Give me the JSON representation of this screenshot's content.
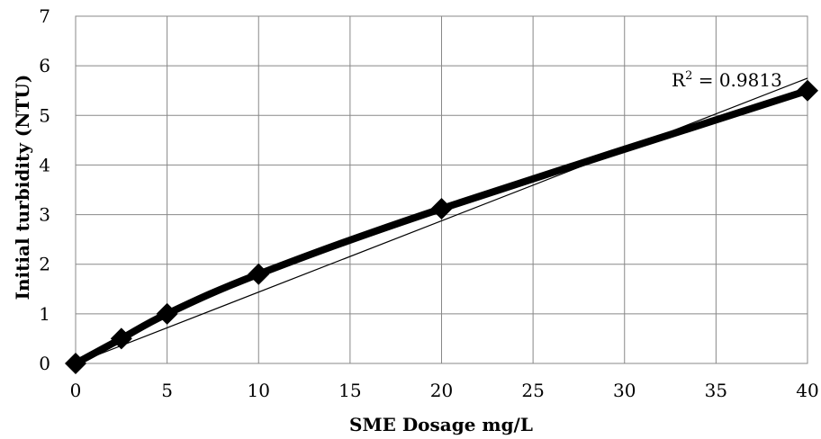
{
  "chart_data": {
    "type": "scatter",
    "xlabel": "SME Dosage mg/L",
    "ylabel": "Initial turbidity  (NTU)",
    "xlim": [
      0,
      40
    ],
    "ylim": [
      0,
      7
    ],
    "x_ticks": [
      0,
      5,
      10,
      15,
      20,
      25,
      30,
      35,
      40
    ],
    "y_ticks": [
      0,
      1,
      2,
      3,
      4,
      5,
      6,
      7
    ],
    "grid": true,
    "series": [
      {
        "points": [
          {
            "x": 0,
            "y": 0
          },
          {
            "x": 2.5,
            "y": 0.5
          },
          {
            "x": 5,
            "y": 1.0
          },
          {
            "x": 10,
            "y": 1.8
          },
          {
            "x": 20,
            "y": 3.12
          },
          {
            "x": 40,
            "y": 5.5
          }
        ],
        "marker": "diamond",
        "line": "smooth",
        "color": "#000000"
      }
    ],
    "trendline": {
      "type": "linear",
      "x": [
        0,
        40
      ],
      "y": [
        0,
        5.75
      ],
      "color": "#000000"
    },
    "annotation": {
      "r_symbol": "R",
      "r_exponent": "2",
      "r_value": " = 0.9813"
    }
  }
}
